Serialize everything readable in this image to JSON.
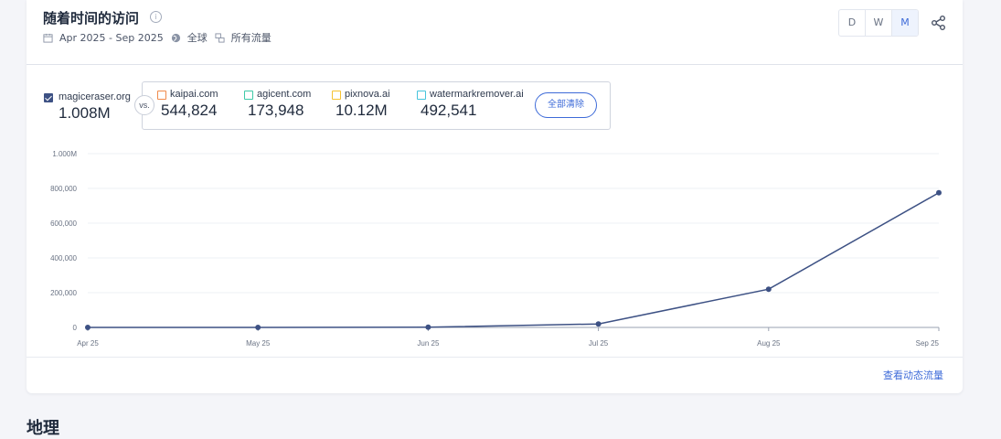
{
  "header": {
    "title": "随着时间的访问",
    "date_range": "Apr 2025 - Sep 2025",
    "region": "全球",
    "traffic_type": "所有流量"
  },
  "period_toggle": {
    "options": [
      "D",
      "W",
      "M"
    ],
    "selected": "M"
  },
  "main_site": {
    "name": "magiceraser.org",
    "value": "1.008M",
    "checked": true,
    "color": "#3d5184"
  },
  "vs_label": "vs.",
  "competitors": [
    {
      "name": "kaipai.com",
      "value": "544,824",
      "color": "#f08a4b"
    },
    {
      "name": "agicent.com",
      "value": "173,948",
      "color": "#3ec9a7"
    },
    {
      "name": "pixnova.ai",
      "value": "10.12M",
      "color": "#f5c232"
    },
    {
      "name": "watermarkremover.ai",
      "value": "492,541",
      "color": "#46c4dc"
    }
  ],
  "clear_all_label": "全部清除",
  "view_link_label": "查看动态流量",
  "next_section_title": "地理",
  "chart_data": {
    "type": "line",
    "categories": [
      "Apr 25",
      "May 25",
      "Jun 25",
      "Jul 25",
      "Aug 25",
      "Sep 25"
    ],
    "series": [
      {
        "name": "magiceraser.org",
        "color": "#3d5184",
        "values": [
          0,
          0,
          1500,
          20000,
          220000,
          775000
        ]
      }
    ],
    "yticks": [
      0,
      200000,
      400000,
      600000,
      800000,
      1000000
    ],
    "ytick_labels": [
      "0",
      "200,000",
      "400,000",
      "600,000",
      "800,000",
      "1.000M"
    ],
    "ylim": [
      0,
      1000000
    ],
    "grid": true
  }
}
